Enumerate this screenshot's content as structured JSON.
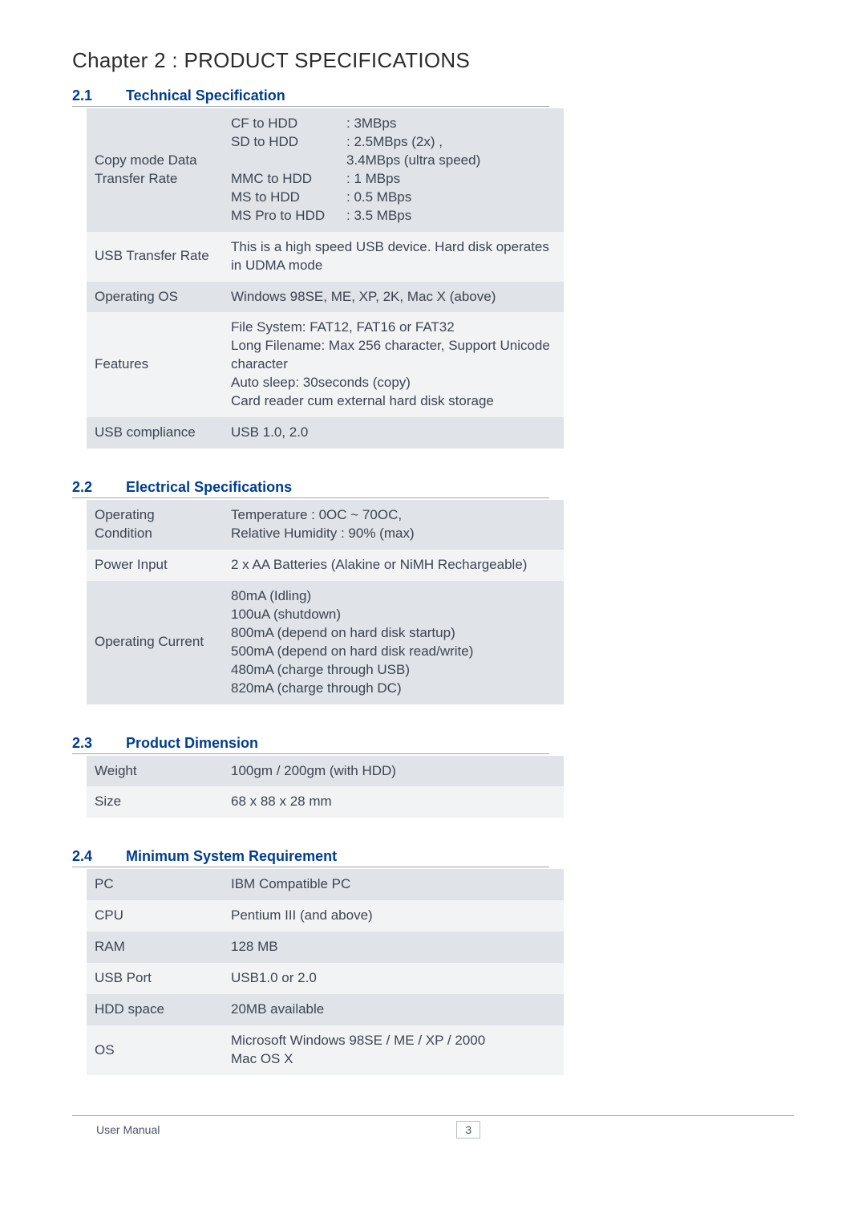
{
  "chapter_title": "Chapter 2  : PRODUCT SPECIFICATIONS",
  "sections": {
    "s1": {
      "num": "2.1",
      "title": "Technical Specification"
    },
    "s2": {
      "num": "2.2",
      "title": "Electrical Specifications"
    },
    "s3": {
      "num": "2.3",
      "title": "Product Dimension"
    },
    "s4": {
      "num": "2.4",
      "title": "Minimum System Requirement"
    }
  },
  "tech_spec": {
    "r0_label": "Copy mode Data Transfer Rate",
    "r0_cf_k": "CF to HDD",
    "r0_cf_v": ": 3MBps",
    "r0_sd_k": "SD to HDD",
    "r0_sd_v": ": 2.5MBps (2x) ,",
    "r0_sd_v2": "  3.4MBps (ultra speed)",
    "r0_mmc_k": "MMC to HDD",
    "r0_mmc_v": ": 1 MBps",
    "r0_ms_k": "MS to HDD",
    "r0_ms_v": ": 0.5 MBps",
    "r0_msp_k": "MS Pro to HDD",
    "r0_msp_v": ": 3.5 MBps",
    "r1_label": "USB Transfer Rate",
    "r1_value": "This is a high speed USB device. Hard disk operates in UDMA mode",
    "r2_label": "Operating OS",
    "r2_value": "Windows 98SE, ME, XP, 2K, Mac X (above)",
    "r3_label": "Features",
    "r3_l1": "File System: FAT12, FAT16 or FAT32",
    "r3_l2": "Long Filename: Max 256 character, Support Unicode character",
    "r3_l3": "Auto sleep: 30seconds (copy)",
    "r3_l4": "Card reader cum external hard disk storage",
    "r4_label": "USB compliance",
    "r4_value": "USB 1.0, 2.0"
  },
  "elec_spec": {
    "r0_label": "Operating Condition",
    "r0_l1": "Temperature : 0OC ~ 70OC,",
    "r0_l2": "Relative Humidity : 90% (max)",
    "r1_label": "Power Input",
    "r1_value": "2 x AA Batteries (Alakine or NiMH Rechargeable)",
    "r2_label": "Operating Current",
    "r2_l1": "80mA (Idling)",
    "r2_l2": "100uA (shutdown)",
    "r2_l3": "800mA (depend on hard disk startup)",
    "r2_l4": "500mA (depend on hard disk read/write)",
    "r2_l5": "480mA (charge through USB)",
    "r2_l6": "820mA (charge through DC)"
  },
  "dimension": {
    "r0_label": "Weight",
    "r0_value": "100gm / 200gm (with HDD)",
    "r1_label": "Size",
    "r1_value": "68 x 88 x 28 mm"
  },
  "min_req": {
    "r0_label": "PC",
    "r0_value": "IBM Compatible PC",
    "r1_label": "CPU",
    "r1_value": "Pentium III (and above)",
    "r2_label": "RAM",
    "r2_value": "128 MB",
    "r3_label": "USB Port",
    "r3_value": "USB1.0 or 2.0",
    "r4_label": "HDD space",
    "r4_value": "20MB available",
    "r5_label": "OS",
    "r5_l1": "Microsoft Windows 98SE / ME / XP / 2000",
    "r5_l2": "Mac OS X"
  },
  "footer": {
    "manual": "User Manual",
    "page": "3"
  },
  "colors": {
    "heading_blue": "#003d8f",
    "row_odd_bg": "#e0e3e7",
    "row_even_bg": "#f2f3f5",
    "text": "#3d4550",
    "rule": "#9da5b0"
  }
}
